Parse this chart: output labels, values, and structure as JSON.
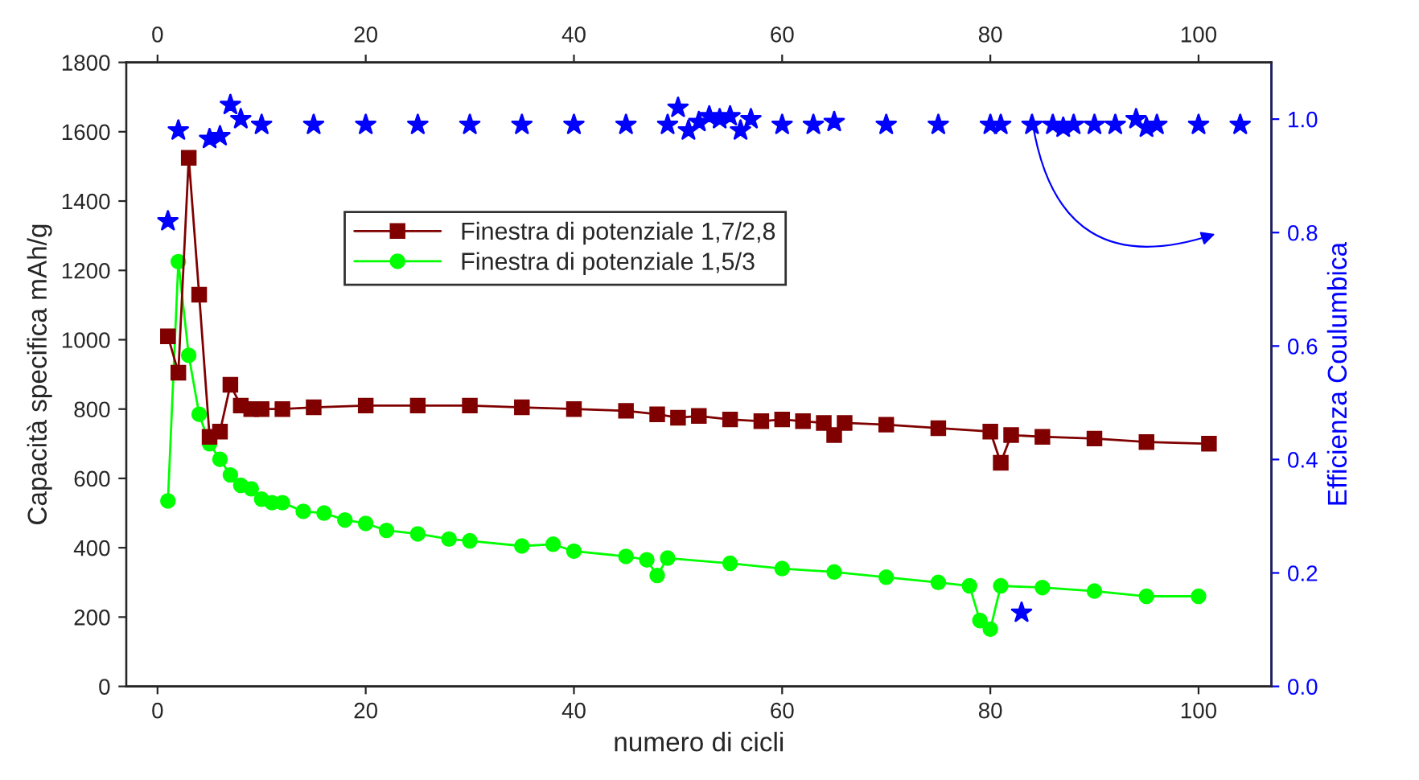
{
  "chart_data": {
    "type": "line",
    "xlabel": "numero di cicli",
    "ylabel": "Capacità specifica mAh/g",
    "y2label": "Efficienza Coulumbica",
    "xlim": [
      -3,
      107
    ],
    "xticks": [
      0,
      20,
      40,
      60,
      80,
      100
    ],
    "x2lim": [
      -3,
      107
    ],
    "x2ticks": [
      0,
      20,
      40,
      60,
      80,
      100
    ],
    "ylim": [
      0,
      1800
    ],
    "yticks": [
      0,
      200,
      400,
      600,
      800,
      1000,
      1200,
      1400,
      1600,
      1800
    ],
    "y2lim": [
      0,
      1.1
    ],
    "y2ticks": [
      {
        "value": 0,
        "label": "0.0"
      },
      {
        "value": 0.2,
        "label": "0.2"
      },
      {
        "value": 0.4,
        "label": "0.4"
      },
      {
        "value": 0.6,
        "label": "0.6"
      },
      {
        "value": 0.8,
        "label": "0.8"
      },
      {
        "value": 1.0,
        "label": "1.0"
      }
    ],
    "legend": "top left",
    "grid": false,
    "series": [
      {
        "name": "Finestra di potenziale 1,7/2,8",
        "color": "#800000",
        "marker": "square",
        "x": [
          1,
          2,
          3,
          4,
          5,
          6,
          7,
          8,
          9,
          10,
          12,
          15,
          20,
          25,
          30,
          35,
          40,
          45,
          48,
          50,
          52,
          55,
          58,
          60,
          62,
          64,
          65,
          66,
          70,
          75,
          80,
          81,
          82,
          85,
          90,
          95,
          101
        ],
        "values": [
          1010,
          905,
          1525,
          1130,
          720,
          735,
          870,
          810,
          800,
          800,
          800,
          805,
          810,
          810,
          810,
          805,
          800,
          795,
          785,
          775,
          780,
          770,
          765,
          770,
          765,
          760,
          725,
          760,
          755,
          745,
          735,
          645,
          725,
          720,
          715,
          705,
          700
        ]
      },
      {
        "name": "Finestra di potenziale 1,5/3",
        "color": "#00ff00",
        "marker": "circle",
        "x": [
          1,
          2,
          3,
          4,
          5,
          6,
          7,
          8,
          9,
          10,
          11,
          12,
          14,
          16,
          18,
          20,
          22,
          25,
          28,
          30,
          35,
          38,
          40,
          45,
          47,
          48,
          49,
          55,
          60,
          65,
          70,
          75,
          78,
          79,
          80,
          81,
          85,
          90,
          95,
          100
        ],
        "values": [
          535,
          1225,
          955,
          785,
          700,
          655,
          610,
          580,
          570,
          540,
          530,
          530,
          505,
          500,
          480,
          470,
          450,
          440,
          425,
          420,
          405,
          410,
          390,
          375,
          365,
          320,
          370,
          355,
          340,
          330,
          315,
          300,
          290,
          190,
          165,
          290,
          285,
          275,
          260,
          260
        ]
      },
      {
        "type": "scatter",
        "axis": "y2",
        "color": "#0000ff",
        "marker": "star",
        "x": [
          1,
          2,
          5,
          6,
          7,
          8,
          10,
          15,
          20,
          25,
          30,
          35,
          40,
          45,
          49,
          50,
          51,
          52,
          53,
          54,
          55,
          56,
          57,
          60,
          63,
          65,
          70,
          75,
          80,
          81,
          83,
          84,
          86,
          87,
          88,
          90,
          92,
          94,
          95,
          96,
          100,
          104
        ],
        "values": [
          0.82,
          0.98,
          0.965,
          0.97,
          1.025,
          1.0,
          0.99,
          0.99,
          0.99,
          0.99,
          0.99,
          0.99,
          0.99,
          0.99,
          0.99,
          1.02,
          0.98,
          0.995,
          1.005,
          1.0,
          1.005,
          0.98,
          1.0,
          0.99,
          0.99,
          0.995,
          0.99,
          0.99,
          0.99,
          0.99,
          0.13,
          0.99,
          0.99,
          0.985,
          0.99,
          0.99,
          0.99,
          1.0,
          0.985,
          0.99,
          0.99,
          0.99
        ]
      }
    ]
  }
}
